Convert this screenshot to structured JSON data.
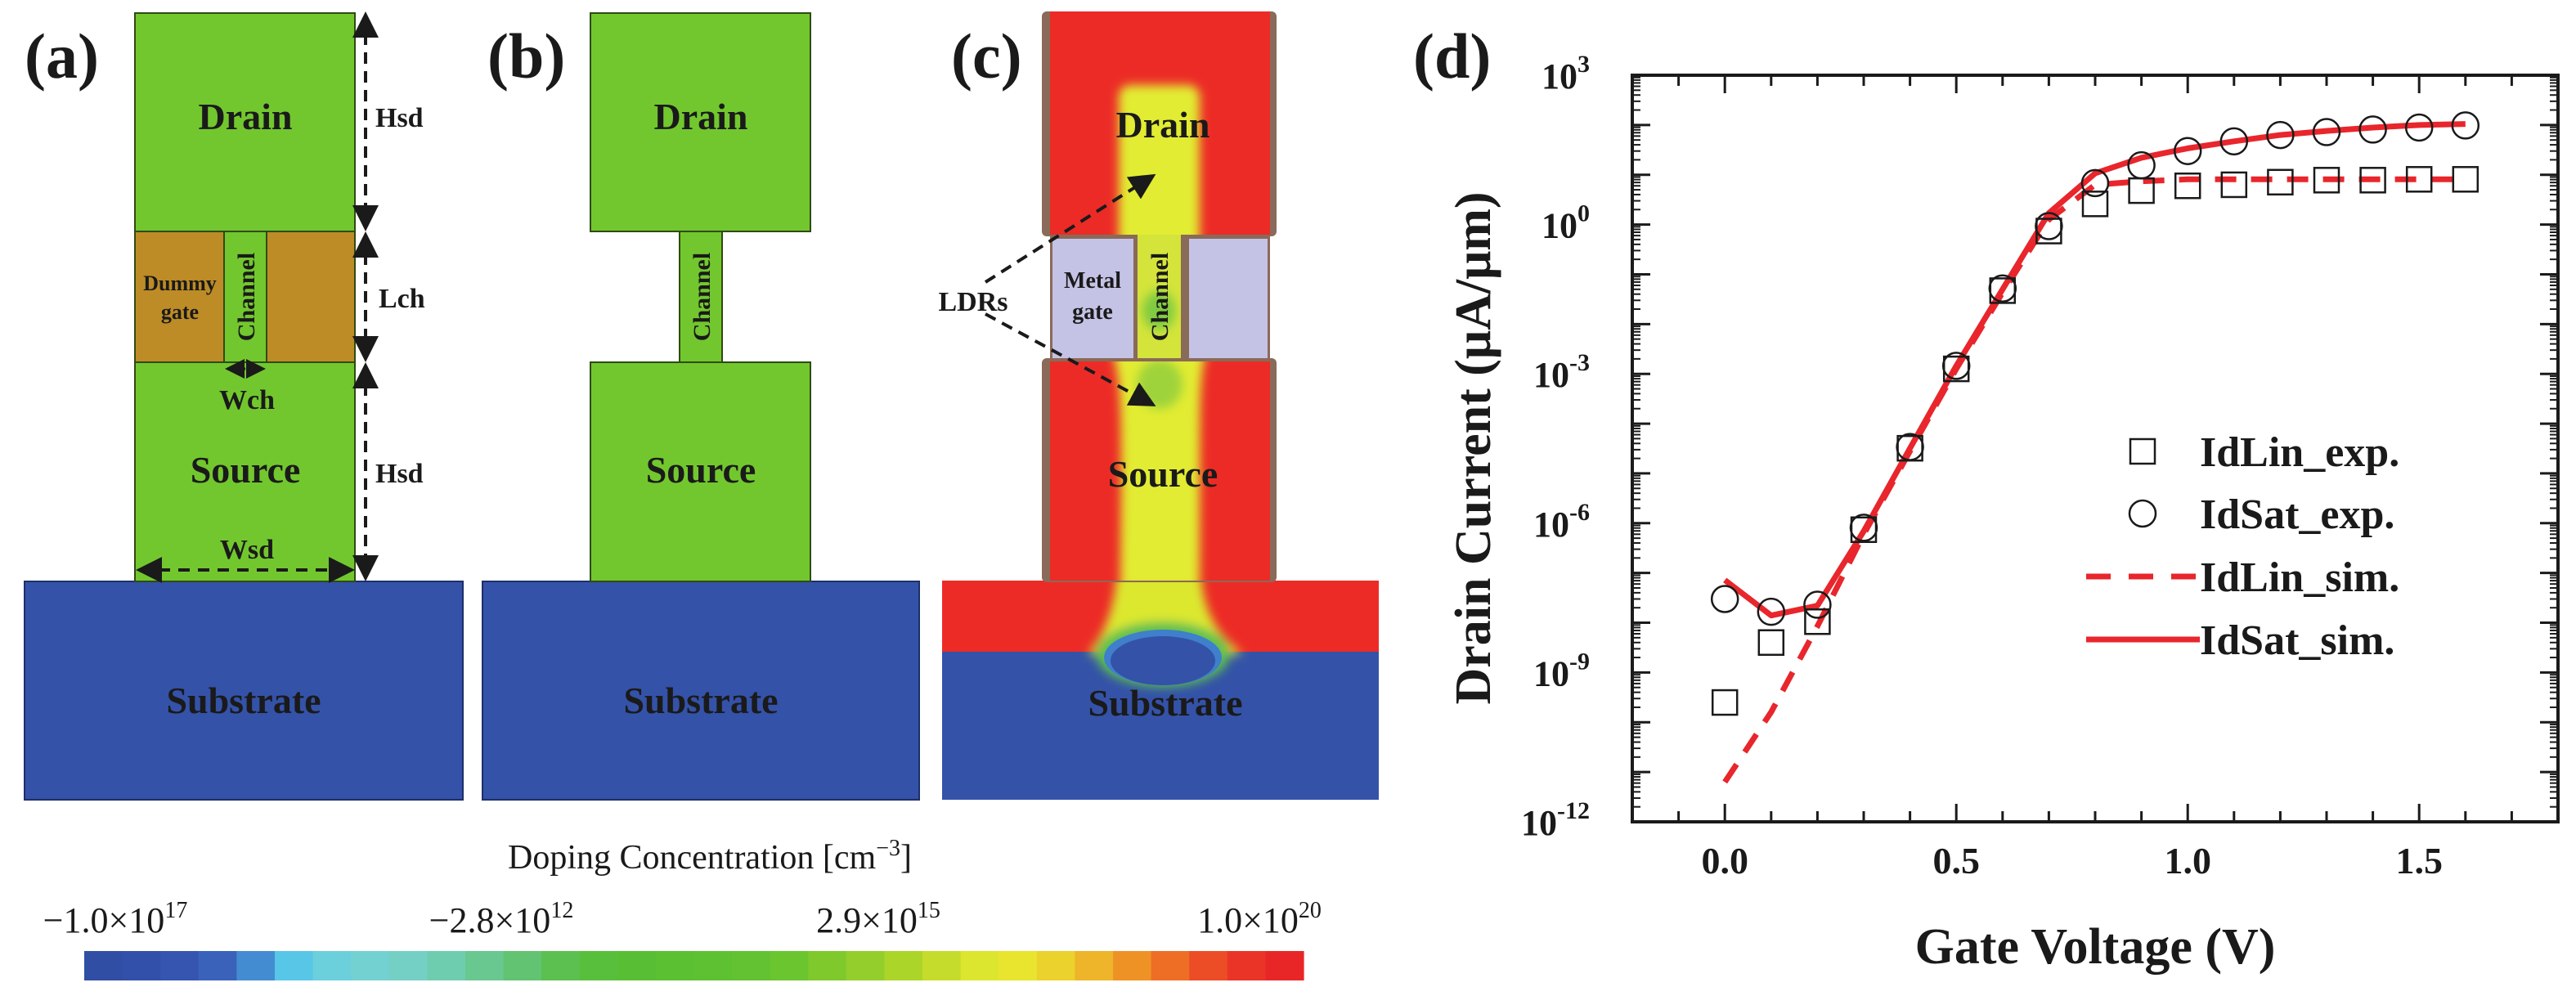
{
  "panels": {
    "a": {
      "label": "(a)",
      "drain": "Drain",
      "source": "Source",
      "substrate": "Substrate",
      "channel": "Channel",
      "dummy_gate": [
        "Dummy",
        "gate"
      ],
      "dims": {
        "hsd_top": "Hsd",
        "lch": "Lch",
        "hsd_bottom": "Hsd",
        "wch": "Wch",
        "wsd": "Wsd"
      }
    },
    "b": {
      "label": "(b)",
      "drain": "Drain",
      "source": "Source",
      "substrate": "Substrate",
      "channel": "Channel"
    },
    "c": {
      "label": "(c)",
      "drain": "Drain",
      "source": "Source",
      "substrate": "Substrate",
      "channel": "Channel",
      "metal_gate": [
        "Metal",
        "gate"
      ],
      "ldrs": "LDRs"
    },
    "d": {
      "label": "(d)"
    }
  },
  "colors": {
    "sd_green": "#72c72e",
    "dummy_gate": "#bd8c26",
    "substrate_blue": "#3452a8",
    "metal_gate": "#c4c3e6",
    "n_plus_red": "#ec2b27",
    "ldr_yellow": "#e2ec30",
    "spacer": "#8a6a58",
    "sim_line": "#e8262c"
  },
  "colorbar": {
    "title": "Doping Concentration [cm",
    "title_exp": "−3",
    "title_end": "]",
    "ticks": [
      {
        "mant": "−1.0×10",
        "exp": "17"
      },
      {
        "mant": "−2.8×10",
        "exp": "12"
      },
      {
        "mant": "2.9×10",
        "exp": "15"
      },
      {
        "mant": "1.0×10",
        "exp": "20"
      }
    ],
    "colormap": [
      "#2f4ea4",
      "#3250aa",
      "#3555b0",
      "#3a62bb",
      "#448cd2",
      "#58c6e6",
      "#6ccfdc",
      "#74d1d2",
      "#74d0c4",
      "#6fcdaf",
      "#68c890",
      "#62c472",
      "#5cc050",
      "#58bf3c",
      "#58bf34",
      "#5bc032",
      "#5ec132",
      "#62c232",
      "#6ac52f",
      "#7fc92c",
      "#94ce2c",
      "#acd52a",
      "#c6dc2c",
      "#dde62e",
      "#e9e52e",
      "#ecd22c",
      "#eeb42a",
      "#ef9226",
      "#ee6e26",
      "#ec4c26",
      "#ea3427",
      "#e92627"
    ]
  },
  "chart_data": {
    "type": "scatter+line",
    "xlabel": "Gate Voltage (V)",
    "ylabel": "Drain Current (μA/μm)",
    "xlim": [
      -0.2,
      1.8
    ],
    "ylim": [
      1e-12,
      1000.0
    ],
    "yscale": "log",
    "xticks": [
      "0.0",
      "0.5",
      "1.0",
      "1.5"
    ],
    "yticks": [
      {
        "base": "10",
        "exp": "3"
      },
      {
        "base": "10",
        "exp": "0"
      },
      {
        "base": "10",
        "exp": "-3"
      },
      {
        "base": "10",
        "exp": "-6"
      },
      {
        "base": "10",
        "exp": "-9"
      },
      {
        "base": "10",
        "exp": "-12"
      }
    ],
    "grid": false,
    "legend_position": "right-center",
    "x": [
      0.0,
      0.1,
      0.2,
      0.3,
      0.4,
      0.5,
      0.6,
      0.7,
      0.8,
      0.9,
      1.0,
      1.1,
      1.2,
      1.3,
      1.4,
      1.5,
      1.6
    ],
    "series": [
      {
        "name": "IdLin_exp.",
        "style": "open-square",
        "values": [
          2.5e-10,
          4e-09,
          1.05e-08,
          7.4e-07,
          3.2e-05,
          0.00126,
          0.047,
          0.74,
          2.6,
          4.8,
          6.0,
          6.3,
          7.1,
          7.8,
          7.8,
          8.1,
          8.1
        ]
      },
      {
        "name": "IdSat_exp.",
        "style": "open-circle",
        "values": [
          3e-08,
          1.66e-08,
          2.3e-08,
          8.1e-07,
          3.4e-05,
          0.00145,
          0.052,
          0.93,
          6.8,
          15.5,
          30,
          47,
          63,
          72,
          81,
          89,
          98
        ]
      },
      {
        "name": "IdLin_sim.",
        "style": "dashed-red",
        "values": [
          6.3e-12,
          1.6e-10,
          8.5e-09,
          6e-07,
          2.8e-05,
          0.00126,
          0.043,
          1.26,
          6.3,
          7.4,
          8.1,
          8.1,
          8.1,
          8.1,
          8.1,
          8.1,
          8.1
        ]
      },
      {
        "name": "IdSat_sim.",
        "style": "solid-red",
        "values": [
          7.2e-08,
          1.4e-08,
          2.2e-08,
          6.9e-07,
          3.2e-05,
          0.00145,
          0.05,
          1.7,
          10.7,
          22,
          34,
          47,
          63,
          76,
          89,
          100,
          105
        ]
      }
    ]
  }
}
